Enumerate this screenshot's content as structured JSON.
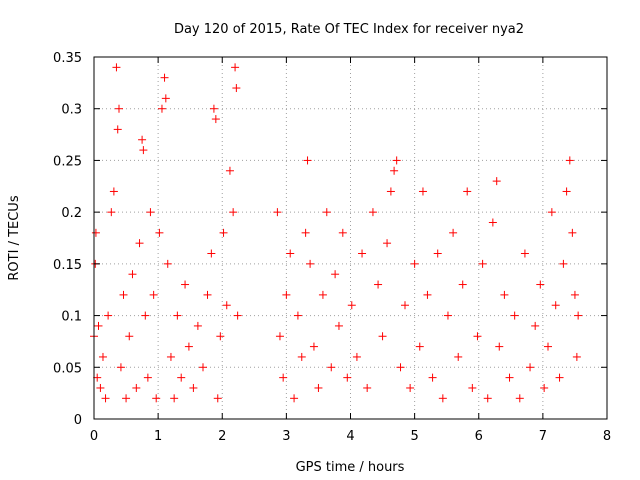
{
  "chart_data": {
    "type": "scatter",
    "title": "Day 120 of 2015, Rate Of TEC Index for receiver nya2",
    "xlabel": "GPS time / hours",
    "ylabel": "ROTI / TECUs",
    "xlim": [
      0,
      8
    ],
    "ylim": [
      0,
      0.35
    ],
    "x_ticks": [
      0,
      1,
      2,
      3,
      4,
      5,
      6,
      7,
      8
    ],
    "x_tick_labels": [
      "0",
      "1",
      "2",
      "3",
      "4",
      "5",
      "6",
      "7",
      "8"
    ],
    "y_ticks": [
      0,
      0.05,
      0.1,
      0.15,
      0.2,
      0.25,
      0.3,
      0.35
    ],
    "y_tick_labels": [
      "0",
      "0.05",
      "0.1",
      "0.15",
      "0.2",
      "0.25",
      "0.3",
      "0.35"
    ],
    "grid": true,
    "marker": "+",
    "series": [
      {
        "name": "ROTI",
        "color": "#ff0000",
        "x": [
          0.0,
          0.02,
          0.03,
          0.05,
          0.07,
          0.1,
          0.14,
          0.18,
          0.22,
          0.27,
          0.31,
          0.35,
          0.37,
          0.39,
          0.42,
          0.46,
          0.5,
          0.55,
          0.6,
          0.66,
          0.71,
          0.75,
          0.77,
          0.8,
          0.84,
          0.88,
          0.93,
          0.97,
          1.02,
          1.06,
          1.1,
          1.12,
          1.15,
          1.2,
          1.25,
          1.3,
          1.36,
          1.42,
          1.48,
          1.55,
          1.62,
          1.7,
          1.77,
          1.83,
          1.87,
          1.9,
          1.93,
          1.97,
          2.02,
          2.07,
          2.12,
          2.17,
          2.2,
          2.22,
          2.24,
          2.86,
          2.9,
          2.95,
          3.0,
          3.06,
          3.12,
          3.18,
          3.24,
          3.3,
          3.33,
          3.37,
          3.43,
          3.5,
          3.57,
          3.63,
          3.7,
          3.76,
          3.82,
          3.88,
          3.95,
          4.02,
          4.1,
          4.18,
          4.26,
          4.35,
          4.43,
          4.5,
          4.57,
          4.63,
          4.68,
          4.72,
          4.78,
          4.85,
          4.93,
          5.0,
          5.08,
          5.13,
          5.2,
          5.28,
          5.36,
          5.44,
          5.52,
          5.6,
          5.68,
          5.75,
          5.82,
          5.9,
          5.98,
          6.06,
          6.14,
          6.22,
          6.28,
          6.32,
          6.4,
          6.48,
          6.56,
          6.64,
          6.72,
          6.8,
          6.88,
          6.96,
          7.02,
          7.08,
          7.14,
          7.2,
          7.26,
          7.32,
          7.37,
          7.42,
          7.46,
          7.5,
          7.53,
          7.55
        ],
        "y": [
          0.08,
          0.15,
          0.18,
          0.04,
          0.09,
          0.03,
          0.06,
          0.02,
          0.1,
          0.2,
          0.22,
          0.34,
          0.28,
          0.3,
          0.05,
          0.12,
          0.02,
          0.08,
          0.14,
          0.03,
          0.17,
          0.27,
          0.26,
          0.1,
          0.04,
          0.2,
          0.12,
          0.02,
          0.18,
          0.3,
          0.33,
          0.31,
          0.15,
          0.06,
          0.02,
          0.1,
          0.04,
          0.13,
          0.07,
          0.03,
          0.09,
          0.05,
          0.12,
          0.16,
          0.3,
          0.29,
          0.02,
          0.08,
          0.18,
          0.11,
          0.24,
          0.2,
          0.34,
          0.32,
          0.1,
          0.2,
          0.08,
          0.04,
          0.12,
          0.16,
          0.02,
          0.1,
          0.06,
          0.18,
          0.25,
          0.15,
          0.07,
          0.03,
          0.12,
          0.2,
          0.05,
          0.14,
          0.09,
          0.18,
          0.04,
          0.11,
          0.06,
          0.16,
          0.03,
          0.2,
          0.13,
          0.08,
          0.17,
          0.22,
          0.24,
          0.25,
          0.05,
          0.11,
          0.03,
          0.15,
          0.07,
          0.22,
          0.12,
          0.04,
          0.16,
          0.02,
          0.1,
          0.18,
          0.06,
          0.13,
          0.22,
          0.03,
          0.08,
          0.15,
          0.02,
          0.19,
          0.23,
          0.07,
          0.12,
          0.04,
          0.1,
          0.02,
          0.16,
          0.05,
          0.09,
          0.13,
          0.03,
          0.07,
          0.2,
          0.11,
          0.04,
          0.15,
          0.22,
          0.25,
          0.18,
          0.12,
          0.06,
          0.1
        ]
      }
    ]
  }
}
